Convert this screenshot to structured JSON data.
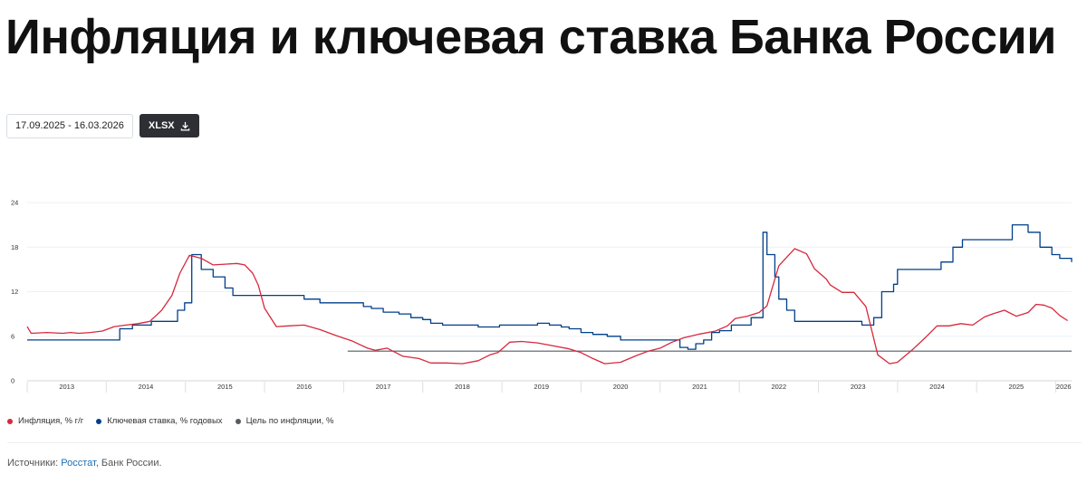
{
  "page": {
    "title": "Инфляция и ключевая ставка Банка России",
    "date_range": "17.09.2025 - 16.03.2026",
    "export_label": "XLSX"
  },
  "legend": [
    {
      "label": "Инфляция, % г/г",
      "color": "#d7283d"
    },
    {
      "label": "Ключевая ставка, % годовых",
      "color": "#003f8a"
    },
    {
      "label": "Цель по инфляции, %",
      "color": "#555b63"
    }
  ],
  "sources": {
    "prefix": "Источники: ",
    "link": "Росстат",
    "suffix": ", Банк России."
  },
  "chart_data": {
    "type": "line",
    "title": "",
    "xlabel": "",
    "ylabel": "",
    "xlim": [
      2013.0,
      2026.2
    ],
    "ylim": [
      0,
      24
    ],
    "yticks": [
      0,
      6,
      12,
      18,
      24
    ],
    "xtick_labels": [
      "2013",
      "2014",
      "2015",
      "2016",
      "2017",
      "2018",
      "2019",
      "2020",
      "2021",
      "2022",
      "2023",
      "2024",
      "2025",
      "2026"
    ],
    "grid": true,
    "legend_position": "bottom-left",
    "series": [
      {
        "name": "Инфляция, % г/г",
        "color": "#d7283d",
        "step": false,
        "x": [
          2013.0,
          2013.05,
          2013.25,
          2013.45,
          2013.55,
          2013.65,
          2013.8,
          2013.95,
          2014.1,
          2014.25,
          2014.4,
          2014.55,
          2014.7,
          2014.83,
          2014.93,
          2015.05,
          2015.2,
          2015.35,
          2015.5,
          2015.65,
          2015.75,
          2015.85,
          2015.92,
          2016.0,
          2016.15,
          2016.3,
          2016.5,
          2016.7,
          2016.9,
          2017.1,
          2017.3,
          2017.4,
          2017.55,
          2017.75,
          2017.95,
          2018.1,
          2018.3,
          2018.5,
          2018.7,
          2018.85,
          2018.95,
          2019.1,
          2019.25,
          2019.45,
          2019.65,
          2019.85,
          2020.0,
          2020.15,
          2020.3,
          2020.5,
          2020.7,
          2020.85,
          2021.0,
          2021.15,
          2021.3,
          2021.5,
          2021.7,
          2021.85,
          2021.95,
          2022.1,
          2022.25,
          2022.35,
          2022.5,
          2022.7,
          2022.85,
          2022.95,
          2023.1,
          2023.15,
          2023.3,
          2023.45,
          2023.6,
          2023.75,
          2023.9,
          2024.0,
          2024.2,
          2024.35,
          2024.5,
          2024.65,
          2024.8,
          2024.95,
          2025.1,
          2025.2,
          2025.35,
          2025.5,
          2025.65,
          2025.75,
          2025.85,
          2025.95,
          2026.05,
          2026.15
        ],
        "y": [
          7.3,
          6.4,
          6.5,
          6.4,
          6.5,
          6.4,
          6.5,
          6.7,
          7.3,
          7.5,
          7.7,
          8.0,
          9.5,
          11.5,
          14.5,
          16.9,
          16.5,
          15.6,
          15.7,
          15.8,
          15.6,
          14.5,
          12.9,
          9.8,
          7.3,
          7.4,
          7.5,
          6.9,
          6.1,
          5.4,
          4.4,
          4.1,
          4.4,
          3.3,
          3.0,
          2.4,
          2.4,
          2.3,
          2.7,
          3.5,
          3.8,
          5.2,
          5.3,
          5.1,
          4.7,
          4.3,
          3.8,
          3.0,
          2.3,
          2.5,
          3.4,
          4.0,
          4.4,
          5.2,
          5.8,
          6.3,
          6.7,
          7.4,
          8.4,
          8.7,
          9.2,
          10.1,
          15.5,
          17.8,
          17.1,
          15.1,
          13.7,
          12.9,
          11.9,
          11.9,
          10.0,
          3.5,
          2.3,
          2.5,
          4.3,
          5.8,
          7.4,
          7.4,
          7.7,
          7.5,
          8.6,
          9.0,
          9.5,
          8.7,
          9.2,
          10.3,
          10.2,
          9.8,
          8.8,
          8.1
        ]
      },
      {
        "name": "Ключевая ставка, % годовых",
        "color": "#003f8a",
        "step": true,
        "x": [
          2013.0,
          2013.85,
          2014.17,
          2014.33,
          2014.57,
          2014.9,
          2014.99,
          2015.08,
          2015.2,
          2015.35,
          2015.5,
          2015.6,
          2016.5,
          2016.7,
          2017.25,
          2017.35,
          2017.5,
          2017.7,
          2017.85,
          2018.0,
          2018.1,
          2018.25,
          2018.7,
          2018.97,
          2019.45,
          2019.6,
          2019.75,
          2019.85,
          2020.0,
          2020.15,
          2020.33,
          2020.5,
          2021.25,
          2021.35,
          2021.45,
          2021.55,
          2021.65,
          2021.75,
          2021.9,
          2022.15,
          2022.3,
          2022.35,
          2022.45,
          2022.5,
          2022.6,
          2022.7,
          2023.55,
          2023.7,
          2023.8,
          2023.95,
          2024.0,
          2024.55,
          2024.7,
          2024.82,
          2025.45,
          2025.65,
          2025.8,
          2025.95,
          2026.05,
          2026.2
        ],
        "y": [
          5.5,
          5.5,
          7.0,
          7.5,
          8.0,
          9.5,
          10.5,
          17.0,
          15.0,
          14.0,
          12.5,
          11.5,
          11.0,
          10.5,
          10.0,
          9.75,
          9.25,
          9.0,
          8.5,
          8.25,
          7.75,
          7.5,
          7.25,
          7.5,
          7.75,
          7.5,
          7.25,
          7.0,
          6.5,
          6.25,
          6.0,
          5.5,
          4.5,
          4.25,
          5.0,
          5.5,
          6.5,
          6.75,
          7.5,
          8.5,
          20.0,
          17.0,
          14.0,
          11.0,
          9.5,
          8.0,
          7.5,
          8.5,
          12.0,
          13.0,
          15.0,
          16.0,
          18.0,
          19.0,
          21.0,
          20.0,
          18.0,
          17.0,
          16.5,
          16.0
        ]
      },
      {
        "name": "Цель по инфляции, %",
        "color": "#555b63",
        "step": false,
        "x": [
          2017.05,
          2026.2
        ],
        "y": [
          4,
          4
        ]
      }
    ]
  }
}
